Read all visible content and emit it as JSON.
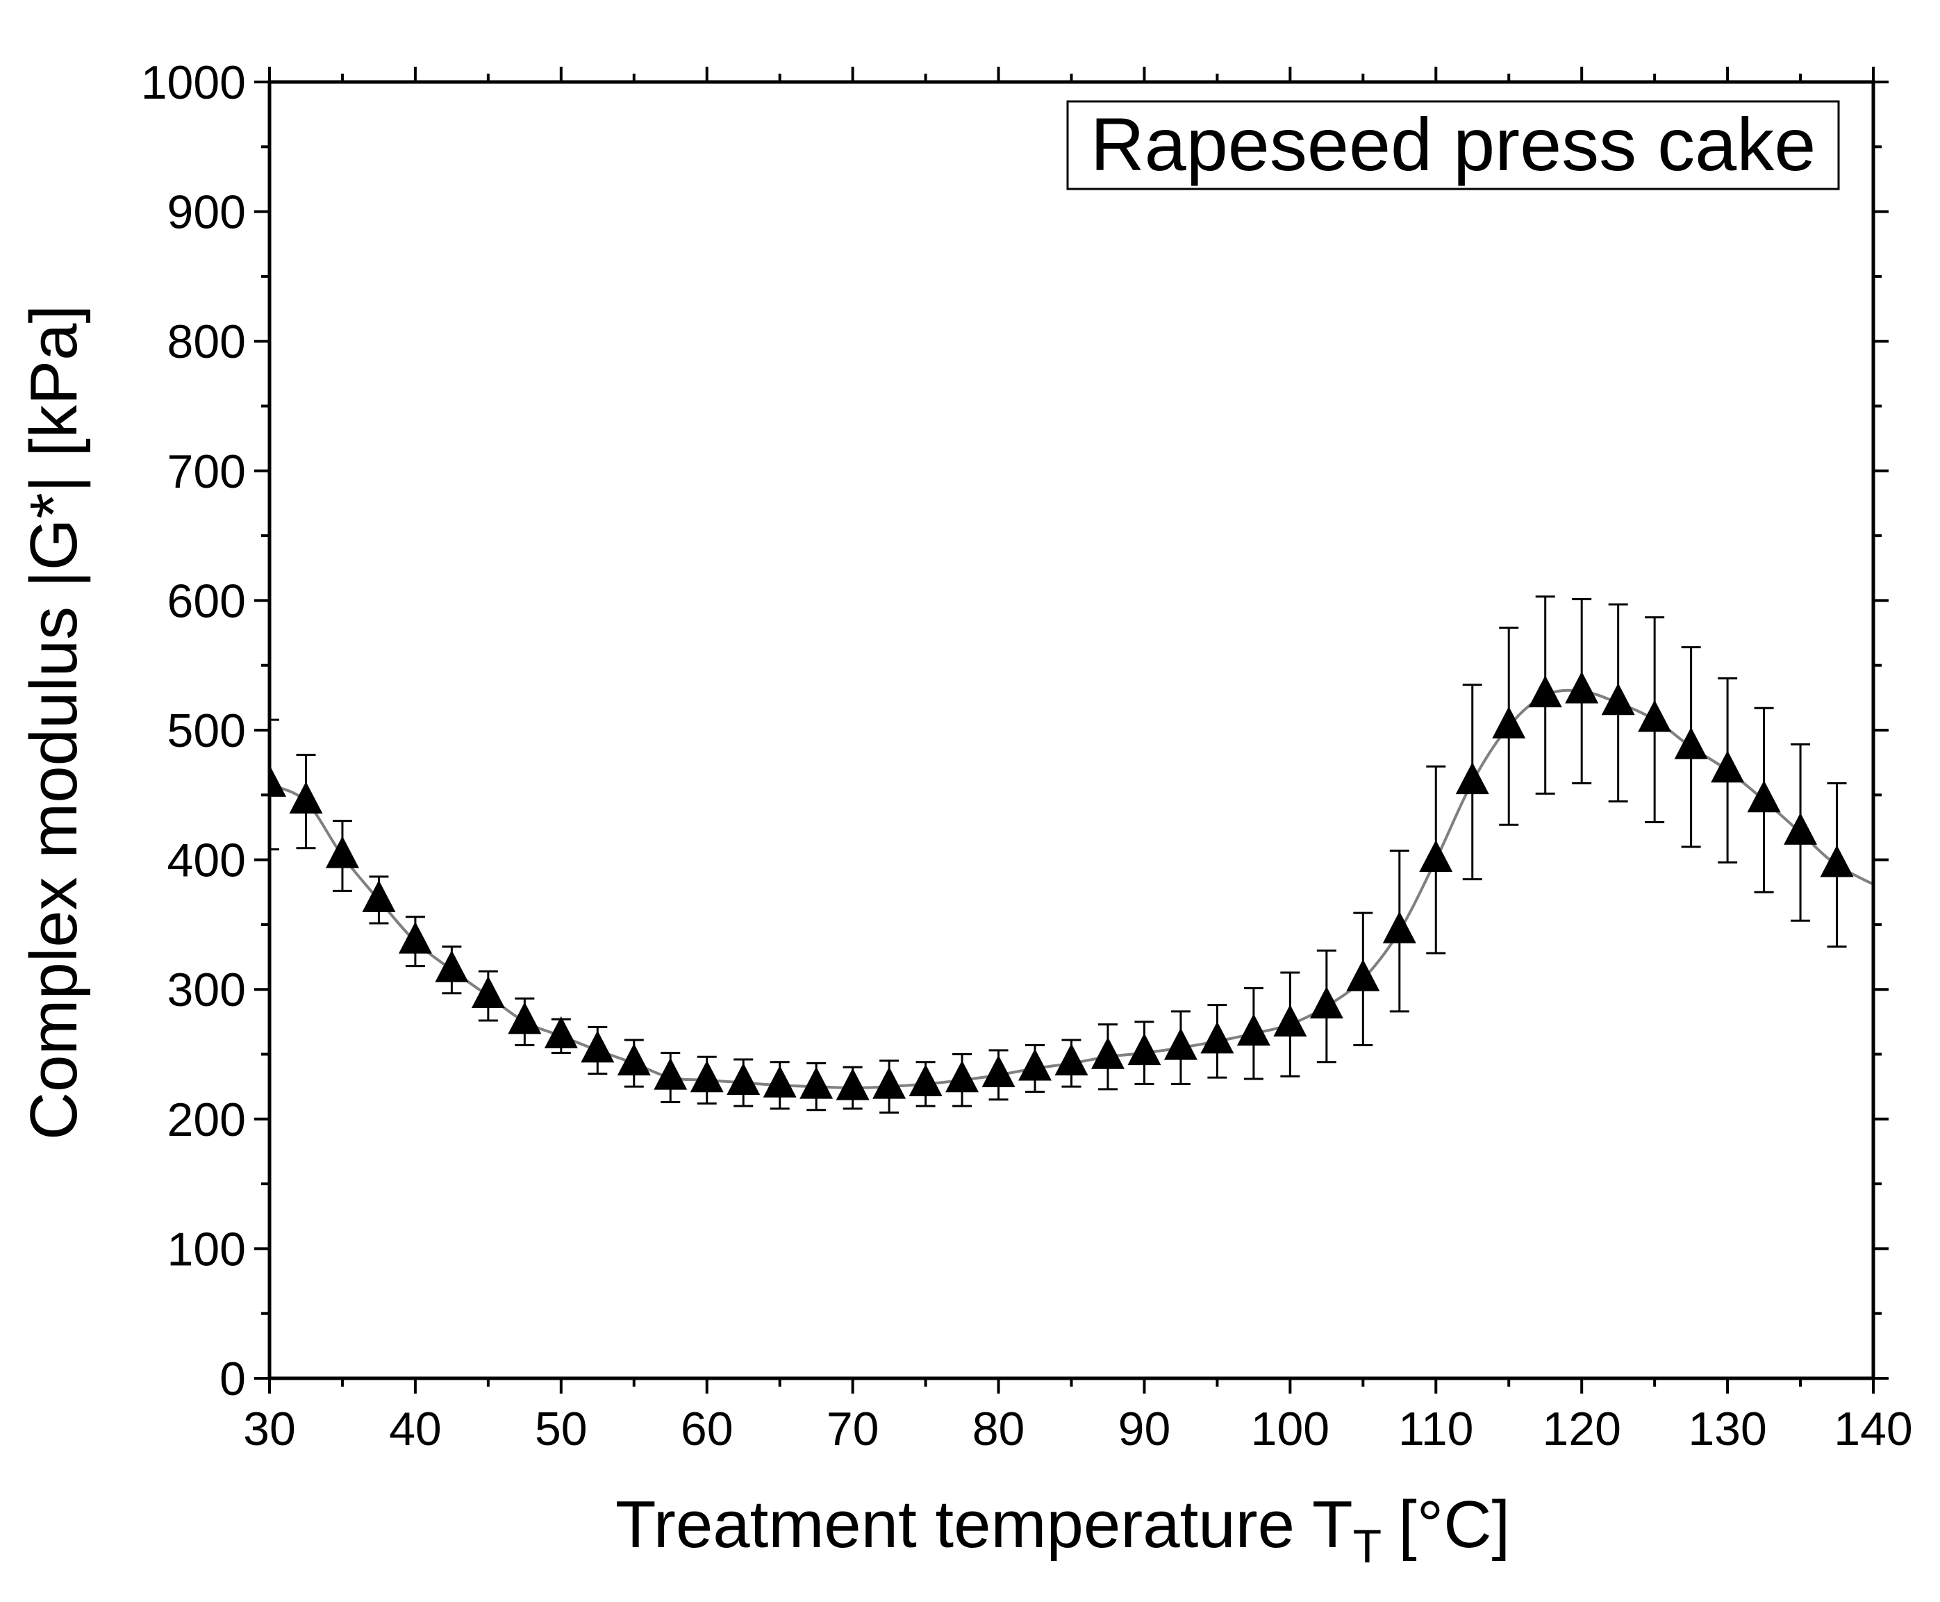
{
  "chart_data": {
    "type": "line",
    "title": "",
    "annotation": "Rapeseed press cake",
    "xlabel": "Treatment temperature T",
    "xlabel_subscript": "T",
    "xlabel_unit": "[°C]",
    "ylabel": "Complex modulus |G*| [kPa]",
    "xlim": [
      30,
      140
    ],
    "ylim": [
      0,
      1000
    ],
    "xticks": [
      30,
      40,
      50,
      60,
      70,
      80,
      90,
      100,
      110,
      120,
      130,
      140
    ],
    "yticks": [
      0,
      100,
      200,
      300,
      400,
      500,
      600,
      700,
      800,
      900,
      1000
    ],
    "grid": false,
    "series": [
      {
        "name": "Rapeseed press cake",
        "marker": "triangle",
        "color": "#000000",
        "line_color": "#808080",
        "x": [
          30,
          32.5,
          35,
          37.5,
          40,
          42.5,
          45,
          47.5,
          50,
          52.5,
          55,
          57.5,
          60,
          62.5,
          65,
          67.5,
          70,
          72.5,
          75,
          77.5,
          80,
          82.5,
          85,
          87.5,
          90,
          92.5,
          95,
          97.5,
          100,
          102.5,
          105,
          107.5,
          110,
          112.5,
          115,
          117.5,
          120,
          122.5,
          125,
          127.5,
          130,
          132.5,
          135,
          137.5
        ],
        "y": [
          458,
          445,
          403,
          369,
          337,
          315,
          295,
          275,
          264,
          253,
          243,
          232,
          230,
          228,
          226,
          225,
          224,
          225,
          227,
          230,
          234,
          239,
          243,
          248,
          251,
          255,
          260,
          266,
          273,
          287,
          308,
          345,
          400,
          460,
          503,
          527,
          530,
          521,
          508,
          487,
          469,
          446,
          421,
          396
        ],
        "error": [
          50,
          36,
          27,
          18,
          19,
          18,
          19,
          18,
          13,
          18,
          18,
          19,
          18,
          18,
          18,
          18,
          16,
          20,
          17,
          20,
          19,
          18,
          18,
          25,
          24,
          28,
          28,
          35,
          40,
          43,
          51,
          62,
          72,
          75,
          76,
          76,
          71,
          76,
          79,
          77,
          71,
          71,
          68,
          63
        ],
        "curve_end": 376
      }
    ]
  }
}
